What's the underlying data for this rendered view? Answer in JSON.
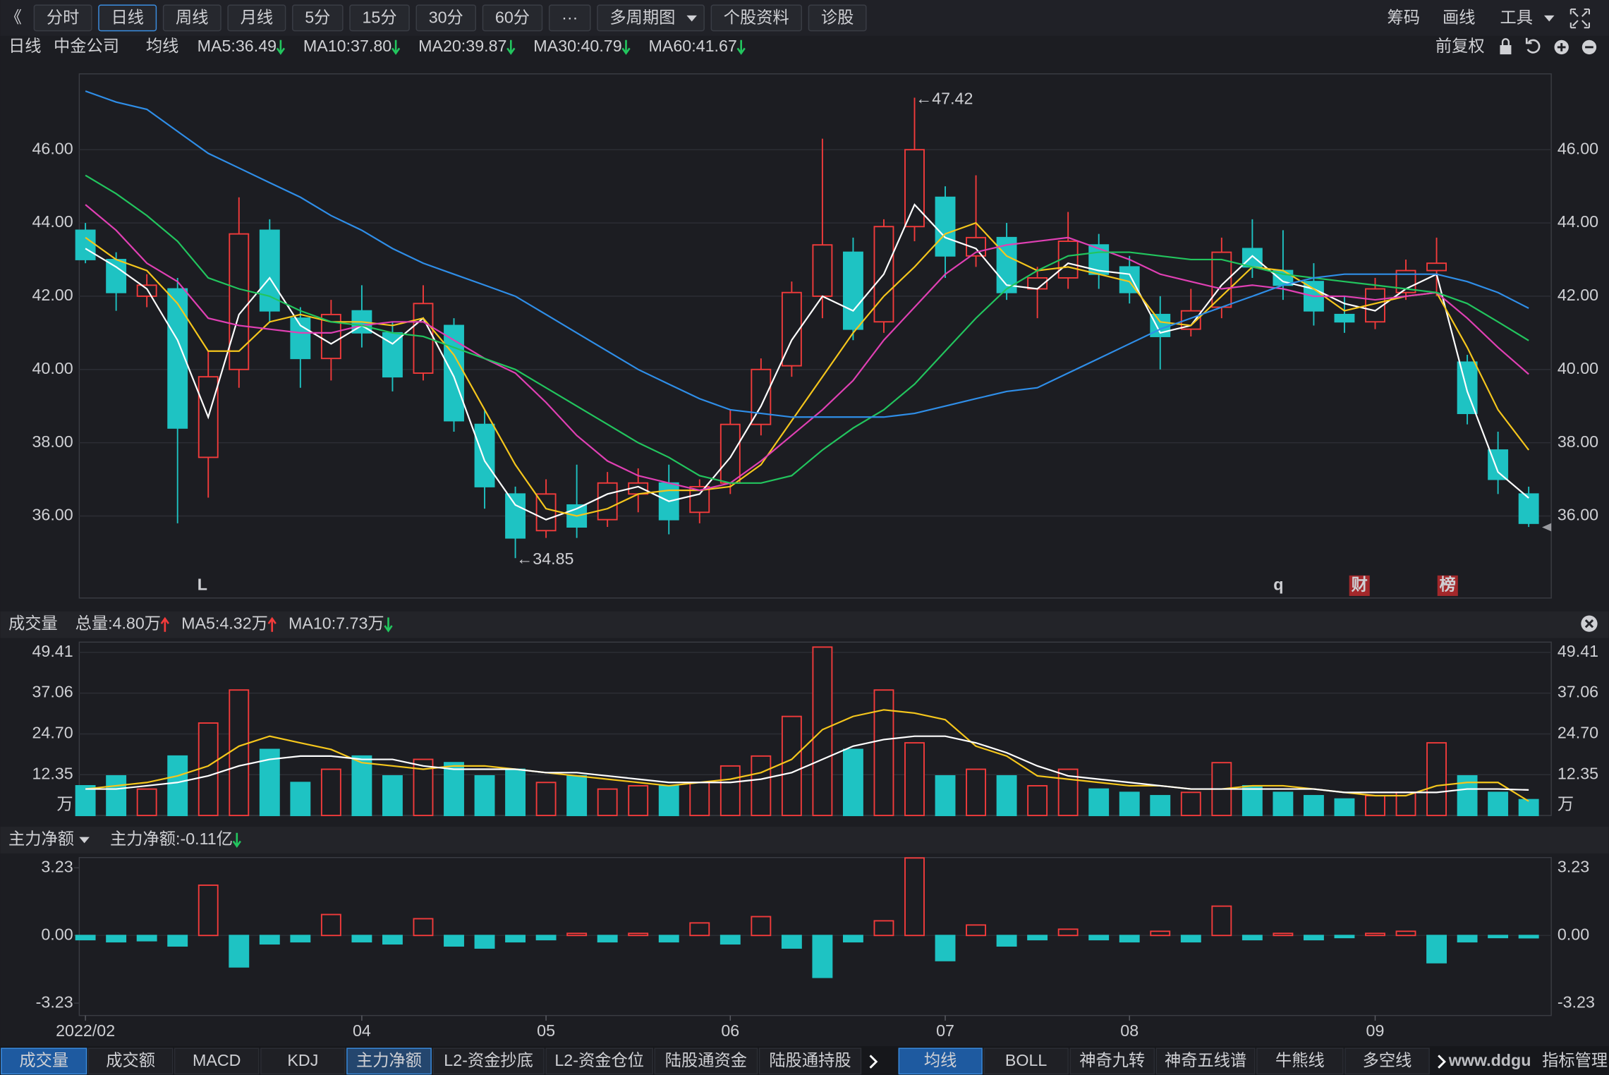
{
  "toolbar": {
    "back": "《",
    "left": [
      {
        "label": "分时"
      },
      {
        "label": "日线"
      },
      {
        "label": "周线"
      },
      {
        "label": "月线"
      },
      {
        "label": "5分"
      },
      {
        "label": "15分"
      },
      {
        "label": "30分"
      },
      {
        "label": "60分"
      },
      {
        "label": "···"
      },
      {
        "label": "多周期图",
        "menu": true
      },
      {
        "label": "个股资料"
      },
      {
        "label": "诊股"
      }
    ],
    "active": 1,
    "right": [
      {
        "label": "筹码"
      },
      {
        "label": "画线"
      },
      {
        "label": "工具",
        "menu": true
      }
    ]
  },
  "info": {
    "period": "日线",
    "name": "中金公司",
    "ma_title": "均线",
    "adjust": "前复权"
  },
  "chart_data": [
    {
      "type": "candlestick",
      "up_color": "#f23b3b",
      "down_color": "#1ec3c3",
      "grid": true,
      "open": [
        43.8,
        43.0,
        42.0,
        42.2,
        37.6,
        40.0,
        43.8,
        41.4,
        40.3,
        41.6,
        41.0,
        39.9,
        41.2,
        38.5,
        36.6,
        35.6,
        36.3,
        35.9,
        36.6,
        36.9,
        36.1,
        36.9,
        38.5,
        40.1,
        42.0,
        43.2,
        41.3,
        43.9,
        44.7,
        43.1,
        43.6,
        42.2,
        42.5,
        43.4,
        42.8,
        41.5,
        41.1,
        41.7,
        43.3,
        42.7,
        42.4,
        41.5,
        41.3,
        42.1,
        42.7,
        40.2,
        37.8,
        36.6
      ],
      "high": [
        44.0,
        43.2,
        42.6,
        42.5,
        40.5,
        44.7,
        44.1,
        41.7,
        41.9,
        42.3,
        41.3,
        42.3,
        41.4,
        38.9,
        36.8,
        37.0,
        37.4,
        37.2,
        37.3,
        37.4,
        37.0,
        38.9,
        40.3,
        42.4,
        46.3,
        43.6,
        44.1,
        47.42,
        45.0,
        45.3,
        44.0,
        42.8,
        44.3,
        43.7,
        43.1,
        42.0,
        42.2,
        43.6,
        44.1,
        43.8,
        42.9,
        42.0,
        42.5,
        43.0,
        43.6,
        40.4,
        38.3,
        36.8
      ],
      "low": [
        42.9,
        41.6,
        41.7,
        35.8,
        36.5,
        39.5,
        41.3,
        39.5,
        39.7,
        40.6,
        39.4,
        39.7,
        38.3,
        36.2,
        34.85,
        35.4,
        35.4,
        35.7,
        36.1,
        35.5,
        35.8,
        36.6,
        38.2,
        39.8,
        41.4,
        40.8,
        41.0,
        43.5,
        42.5,
        42.8,
        41.9,
        41.4,
        42.2,
        42.2,
        41.8,
        40.0,
        40.9,
        41.4,
        42.5,
        41.9,
        41.2,
        41.0,
        41.1,
        41.9,
        42.0,
        38.5,
        36.6,
        35.7
      ],
      "close": [
        43.0,
        42.1,
        42.3,
        38.4,
        39.8,
        43.7,
        41.6,
        40.3,
        41.5,
        41.0,
        39.8,
        41.8,
        38.6,
        36.8,
        35.4,
        36.6,
        35.7,
        36.9,
        36.9,
        35.9,
        36.8,
        38.5,
        40.0,
        42.1,
        43.4,
        41.1,
        43.9,
        46.0,
        43.1,
        43.6,
        42.1,
        42.5,
        43.5,
        42.6,
        42.1,
        40.9,
        41.6,
        43.2,
        42.8,
        42.3,
        41.6,
        41.3,
        42.2,
        42.7,
        42.9,
        38.8,
        37.0,
        35.8
      ],
      "series": [
        {
          "name": "MA5:36.49",
          "color": "#ffffff",
          "values": [
            43.3,
            42.8,
            42.2,
            40.8,
            38.7,
            41.5,
            42.5,
            41.2,
            40.7,
            41.2,
            40.7,
            41.4,
            39.8,
            37.5,
            36.3,
            35.9,
            36.2,
            36.6,
            36.8,
            36.4,
            36.6,
            37.6,
            39.0,
            40.8,
            42.0,
            41.6,
            42.6,
            44.5,
            43.6,
            43.3,
            42.3,
            42.2,
            42.9,
            42.7,
            42.6,
            41.0,
            41.2,
            42.3,
            43.1,
            42.4,
            42.2,
            41.8,
            41.6,
            42.2,
            42.6,
            39.4,
            37.2,
            36.49
          ]
        },
        {
          "name": "MA10:37.80",
          "color": "#f5c61c",
          "values": [
            43.6,
            43.0,
            42.7,
            41.8,
            40.5,
            40.5,
            41.3,
            41.5,
            41.3,
            41.3,
            41.2,
            41.4,
            40.4,
            38.9,
            37.4,
            36.2,
            36.0,
            36.2,
            36.6,
            36.7,
            36.7,
            36.8,
            37.4,
            38.6,
            39.8,
            41.0,
            42.0,
            42.8,
            43.7,
            44.0,
            43.1,
            42.7,
            42.8,
            42.6,
            42.4,
            41.3,
            41.2,
            42.0,
            42.8,
            42.7,
            42.2,
            41.6,
            41.8,
            42.0,
            42.1,
            40.6,
            38.9,
            37.8
          ]
        },
        {
          "name": "MA20:39.87",
          "color": "#e040b4",
          "values": [
            44.5,
            43.8,
            42.9,
            42.4,
            41.4,
            41.2,
            41.1,
            41.0,
            41.0,
            41.2,
            41.3,
            41.3,
            40.8,
            40.3,
            39.9,
            39.1,
            38.2,
            37.5,
            37.1,
            36.9,
            36.7,
            36.9,
            37.5,
            38.2,
            38.9,
            39.7,
            40.8,
            41.7,
            42.6,
            43.2,
            43.4,
            43.5,
            43.6,
            43.3,
            43.0,
            42.6,
            42.4,
            42.2,
            42.3,
            42.2,
            42.0,
            42.0,
            41.9,
            42.0,
            42.1,
            41.4,
            40.6,
            39.87
          ]
        },
        {
          "name": "MA30:40.79",
          "color": "#22c55e",
          "values": [
            45.3,
            44.8,
            44.2,
            43.5,
            42.5,
            42.2,
            42.0,
            41.6,
            41.3,
            41.2,
            41.0,
            40.9,
            40.6,
            40.3,
            40.0,
            39.5,
            39.0,
            38.5,
            38.0,
            37.6,
            37.1,
            36.9,
            36.9,
            37.1,
            37.8,
            38.4,
            38.9,
            39.6,
            40.5,
            41.4,
            42.2,
            42.7,
            43.1,
            43.2,
            43.2,
            43.1,
            43.0,
            43.0,
            42.8,
            42.6,
            42.5,
            42.4,
            42.3,
            42.2,
            42.1,
            41.8,
            41.3,
            40.79
          ]
        },
        {
          "name": "MA60:41.67",
          "color": "#2f8ee8",
          "values": [
            47.6,
            47.3,
            47.1,
            46.5,
            45.9,
            45.5,
            45.1,
            44.7,
            44.2,
            43.8,
            43.3,
            42.9,
            42.6,
            42.3,
            42.0,
            41.5,
            41.0,
            40.5,
            40.0,
            39.6,
            39.2,
            38.9,
            38.8,
            38.7,
            38.7,
            38.7,
            38.7,
            38.8,
            39.0,
            39.2,
            39.4,
            39.5,
            39.9,
            40.3,
            40.7,
            41.1,
            41.4,
            41.7,
            42.0,
            42.3,
            42.5,
            42.6,
            42.6,
            42.6,
            42.6,
            42.4,
            42.1,
            41.67
          ]
        }
      ],
      "annotations": [
        "←47.42",
        "←34.85"
      ],
      "markers": [
        "L",
        "q",
        "财",
        "榜"
      ],
      "ylim": [
        33.76,
        48.07
      ],
      "yticks": [
        {
          "value": 36,
          "label": "36.00"
        },
        {
          "value": 38,
          "label": "38.00"
        },
        {
          "value": 40,
          "label": "40.00"
        },
        {
          "value": 42,
          "label": "42.00"
        },
        {
          "value": 44,
          "label": "44.00"
        },
        {
          "value": 46,
          "label": "46.00"
        }
      ]
    },
    {
      "type": "bar",
      "title": "成交量",
      "summary": "总量:4.80万",
      "unit": "万",
      "grid": true,
      "values": [
        9,
        12,
        8,
        18,
        28,
        38,
        20,
        10,
        14,
        18,
        12,
        17,
        16,
        12,
        14,
        10,
        12,
        8,
        9,
        9,
        10,
        15,
        18,
        30,
        51,
        20,
        38,
        22,
        12,
        14,
        12,
        9,
        14,
        8,
        7,
        6,
        7,
        16,
        9,
        7,
        6,
        5,
        6,
        7,
        22,
        12,
        7,
        4.8
      ],
      "series": [
        {
          "name": "MA5:4.32万",
          "color": "#f5c61c",
          "values": [
            8,
            9,
            10,
            12,
            15,
            21,
            24,
            22,
            20,
            16,
            15,
            14,
            15,
            15,
            14,
            13,
            12,
            11,
            10,
            9,
            10,
            11,
            13,
            17,
            26,
            30,
            32,
            31,
            29,
            21,
            18,
            12,
            11,
            10,
            9,
            9,
            8,
            8,
            9,
            9,
            8,
            7,
            6,
            6,
            9,
            10,
            10,
            4.32
          ]
        },
        {
          "name": "MA10:7.73万",
          "color": "#ffffff",
          "values": [
            8,
            8,
            9,
            10,
            12,
            15,
            17,
            18,
            18,
            17,
            17,
            15,
            14,
            14,
            14,
            13,
            13,
            12,
            11,
            10,
            10,
            10,
            11,
            13,
            17,
            21,
            23,
            24,
            24,
            22,
            19,
            15,
            12,
            11,
            10,
            9,
            8,
            8,
            8,
            8,
            8,
            7,
            7,
            7,
            7,
            8,
            8,
            7.73
          ]
        }
      ],
      "ylim": [
        0,
        52.5
      ],
      "yticks": [
        12.35,
        {
          "value": 24.7,
          "label": "24.70"
        },
        37.06,
        49.41
      ]
    },
    {
      "type": "bar",
      "title": "主力净额",
      "summary": "主力净额:-0.11亿",
      "grid": false,
      "values": [
        -0.2,
        -0.3,
        -0.25,
        -0.5,
        2.4,
        -1.5,
        -0.4,
        -0.3,
        1.0,
        -0.3,
        -0.4,
        0.8,
        -0.5,
        -0.6,
        -0.3,
        -0.2,
        0.1,
        -0.3,
        0.1,
        -0.3,
        0.6,
        -0.4,
        0.9,
        -0.6,
        -2.0,
        -0.3,
        0.7,
        3.7,
        -1.2,
        0.5,
        -0.5,
        -0.2,
        0.3,
        -0.2,
        -0.3,
        0.2,
        -0.3,
        1.4,
        -0.2,
        0.1,
        -0.2,
        -0.1,
        0.1,
        0.2,
        -1.3,
        -0.3,
        -0.1,
        -0.11
      ],
      "ylim": [
        -3.82,
        3.72
      ],
      "yticks": [
        -3.23,
        {
          "value": 0,
          "label": "0.00"
        },
        3.23
      ],
      "categories": [
        "2022/02",
        null,
        null,
        null,
        null,
        null,
        null,
        null,
        null,
        "04",
        null,
        null,
        null,
        null,
        null,
        "05",
        null,
        null,
        null,
        null,
        null,
        "06",
        null,
        null,
        null,
        null,
        null,
        null,
        "07",
        null,
        null,
        null,
        null,
        null,
        "08",
        null,
        null,
        null,
        null,
        null,
        null,
        null,
        "09",
        null,
        null,
        null,
        null,
        null
      ]
    }
  ],
  "tabs": {
    "left": [
      "成交量",
      "成交额",
      "MACD",
      "KDJ",
      "主力净额",
      "L2-资金抄底",
      "L2-资金仓位",
      "陆股通资金",
      "陆股通持股"
    ],
    "right": [
      "均线",
      "BOLL",
      "神奇九转",
      "神奇五线谱",
      "牛熊线",
      "多空线"
    ],
    "manage": "指标管理"
  },
  "watermark": "www.ddgu"
}
